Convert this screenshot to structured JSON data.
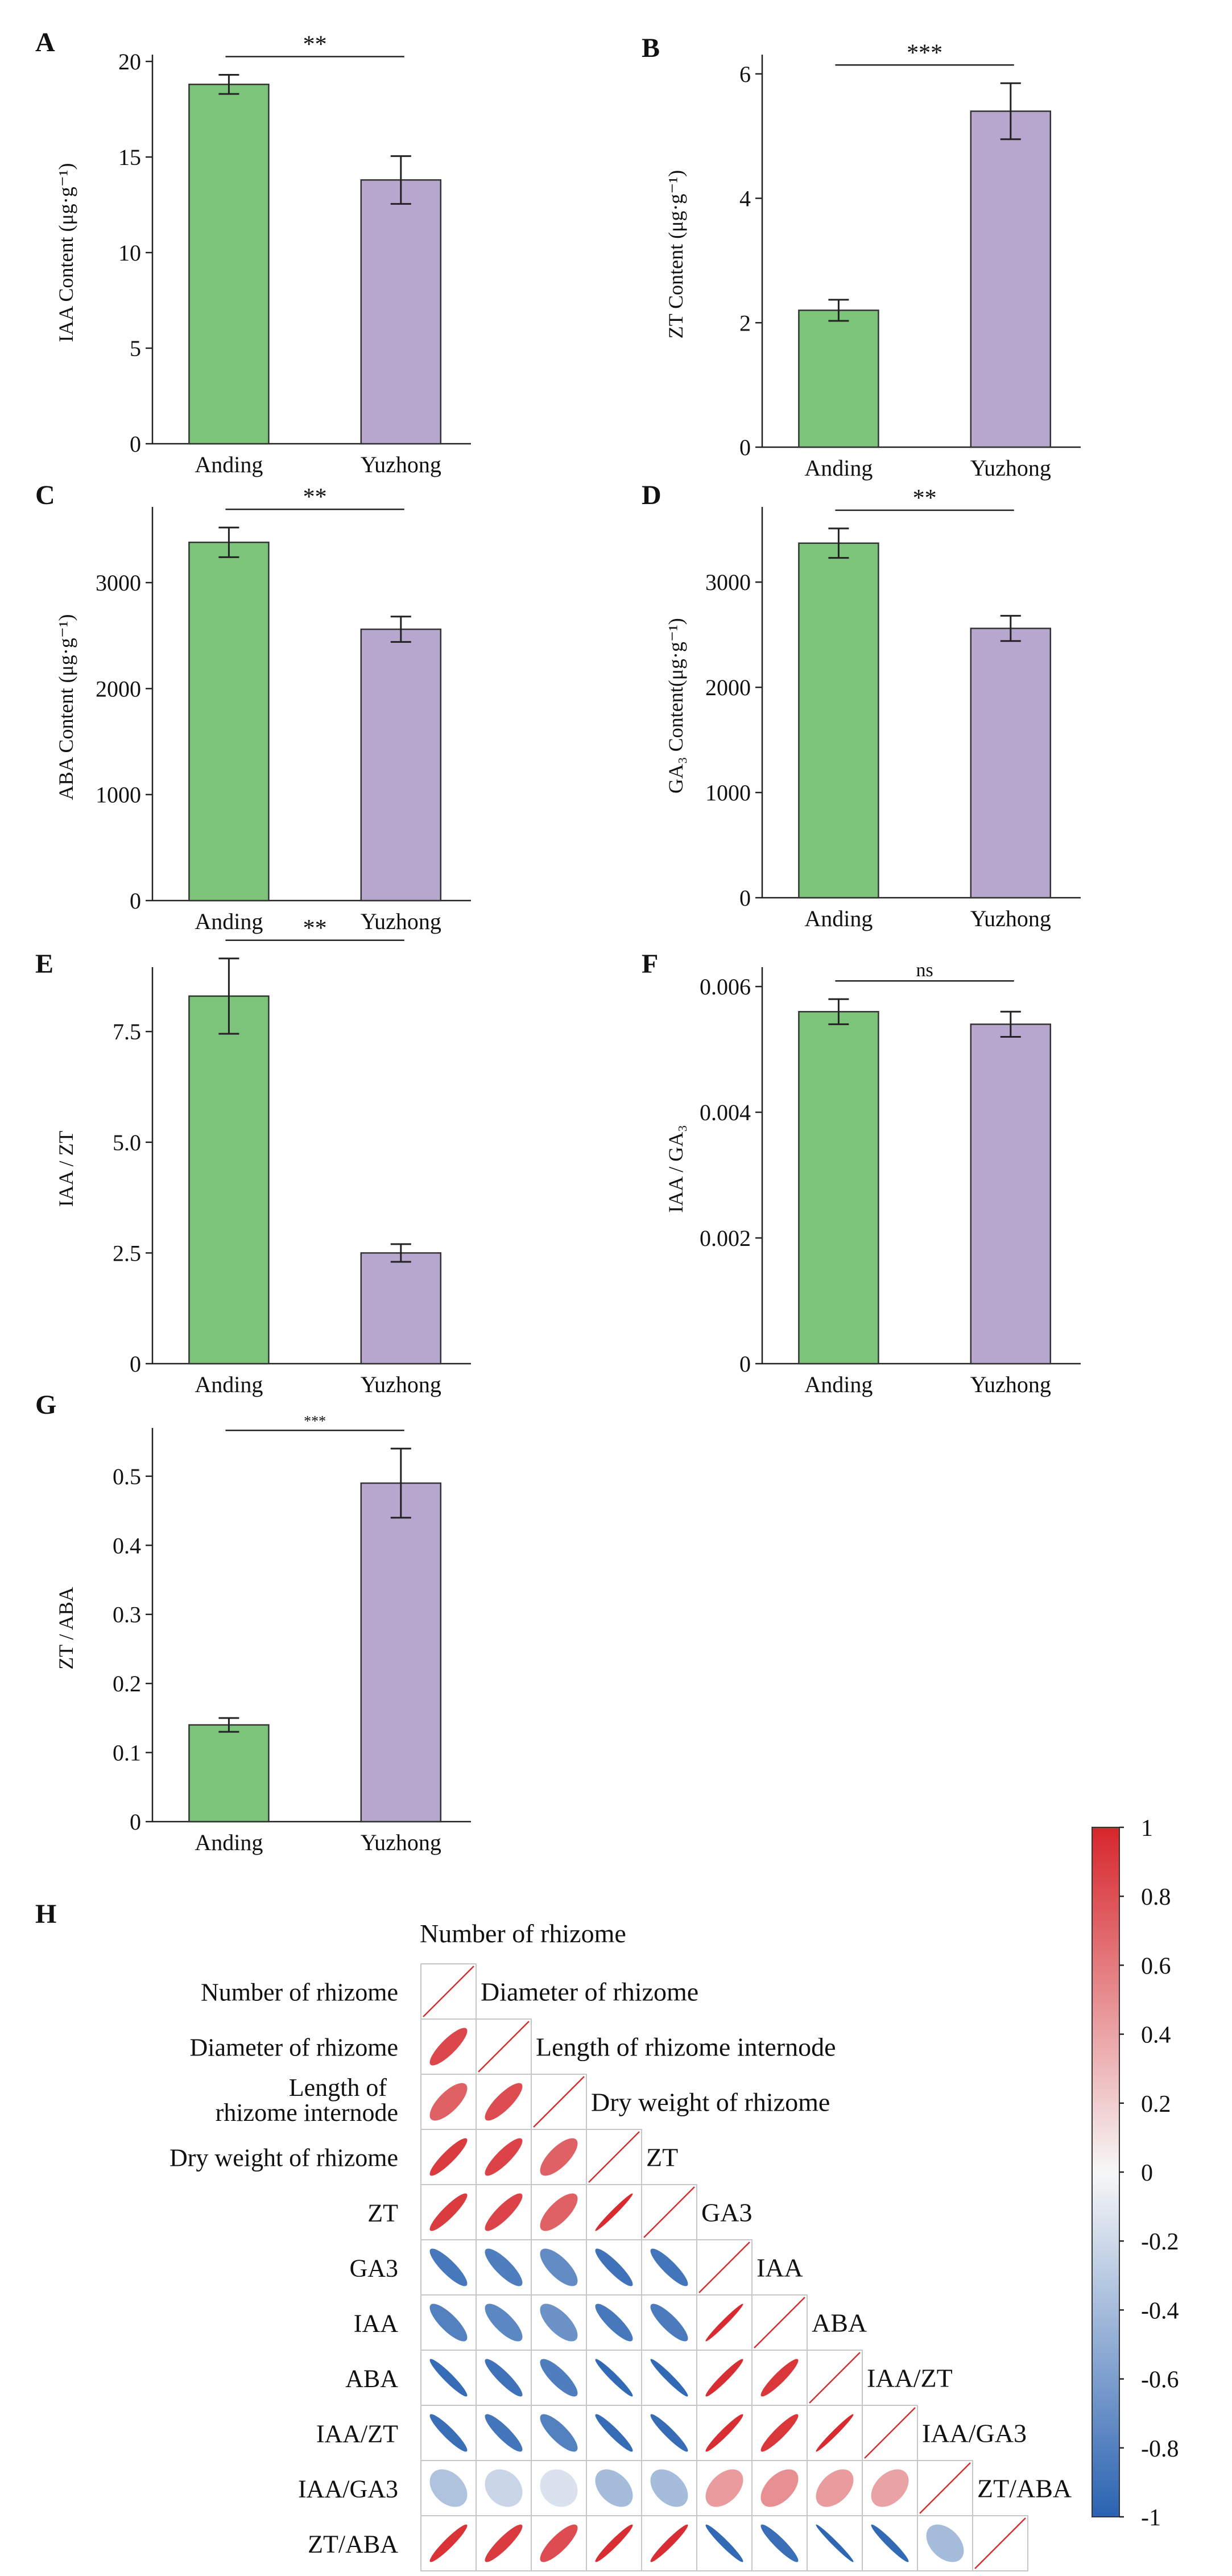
{
  "colors": {
    "anding": "#7dc47b",
    "yuzhong": "#b7a7cf",
    "positive": "#d7262b",
    "negative": "#2a63b2",
    "neutral": "#f7f7f7"
  },
  "chart_data": [
    {
      "panel": "A",
      "type": "bar",
      "categories": [
        "Anding",
        "Yuzhong"
      ],
      "values": [
        18.8,
        13.8
      ],
      "errors": [
        0.5,
        1.25
      ],
      "ylabel": "IAA Content (μg·g⁻¹)",
      "ylim": [
        0,
        20
      ],
      "yticks": [
        0,
        5,
        10,
        15,
        20
      ],
      "tick_labels": [
        "0",
        "5",
        "10",
        "15",
        "20"
      ],
      "significance": "**"
    },
    {
      "panel": "B",
      "type": "bar",
      "categories": [
        "Anding",
        "Yuzhong"
      ],
      "values": [
        2.2,
        5.4
      ],
      "errors": [
        0.17,
        0.45
      ],
      "ylabel": "ZT Content (μg·g⁻¹)",
      "ylim": [
        0,
        6.2
      ],
      "yticks": [
        0,
        2,
        4,
        6
      ],
      "tick_labels": [
        "0",
        "2",
        "4",
        "6"
      ],
      "significance": "***"
    },
    {
      "panel": "C",
      "type": "bar",
      "categories": [
        "Anding",
        "Yuzhong"
      ],
      "values": [
        3380,
        2560
      ],
      "errors": [
        140,
        120
      ],
      "ylabel": "ABA Content (μg·g⁻¹)",
      "ylim": [
        0,
        3650
      ],
      "yticks": [
        0,
        1000,
        2000,
        3000
      ],
      "tick_labels": [
        "0",
        "1000",
        "2000",
        "3000"
      ],
      "significance": "**"
    },
    {
      "panel": "D",
      "type": "bar",
      "categories": [
        "Anding",
        "Yuzhong"
      ],
      "values": [
        3370,
        2560
      ],
      "errors": [
        140,
        120
      ],
      "ylabel": "GA₃ Content(μg·g⁻¹)",
      "ylim": [
        0,
        3650
      ],
      "yticks": [
        0,
        1000,
        2000,
        3000
      ],
      "tick_labels": [
        "0",
        "1000",
        "2000",
        "3000"
      ],
      "significance": "**"
    },
    {
      "panel": "E",
      "type": "bar",
      "categories": [
        "Anding",
        "Yuzhong"
      ],
      "values": [
        8.3,
        2.5
      ],
      "errors": [
        0.85,
        0.2
      ],
      "ylabel": "IAA / ZT",
      "ylim": [
        0,
        8.8
      ],
      "yticks": [
        0,
        2.5,
        5.0,
        7.5
      ],
      "tick_labels": [
        "0",
        "2.5",
        "5.0",
        "7.5"
      ],
      "significance": "**"
    },
    {
      "panel": "F",
      "type": "bar",
      "categories": [
        "Anding",
        "Yuzhong"
      ],
      "values": [
        0.0056,
        0.0054
      ],
      "errors": [
        0.0002,
        0.0002
      ],
      "ylabel": "IAA / GA₃",
      "ylim": [
        0,
        0.0062
      ],
      "yticks": [
        0,
        0.002,
        0.004,
        0.006
      ],
      "tick_labels": [
        "0",
        "0.002",
        "0.004",
        "0.006"
      ],
      "significance": "ns"
    },
    {
      "panel": "G",
      "type": "bar",
      "categories": [
        "Anding",
        "Yuzhong"
      ],
      "values": [
        0.14,
        0.49
      ],
      "errors": [
        0.01,
        0.05
      ],
      "ylabel": "ZT / ABA",
      "ylim": [
        0,
        0.56
      ],
      "yticks": [
        0,
        0.1,
        0.2,
        0.3,
        0.4,
        0.5
      ],
      "tick_labels": [
        "0",
        "0.1",
        "0.2",
        "0.3",
        "0.4",
        "0.5"
      ],
      "significance": "***"
    },
    {
      "panel": "H",
      "type": "heatmap",
      "variables": [
        "Number of rhizome",
        "Diameter of rhizome",
        "Length of rhizome internode",
        "Dry weight of rhizome",
        "ZT",
        "GA3",
        "IAA",
        "ABA",
        "IAA/ZT",
        "IAA/GA3",
        "ZT/ABA"
      ],
      "row_labels": [
        "Number of rhizome",
        "Diameter of rhizome",
        "Length of\nrhizome internode",
        "Dry weight of rhizome",
        "ZT",
        "GA3",
        "IAA",
        "ABA",
        "IAA/ZT",
        "IAA/GA3",
        "ZT/ABA"
      ],
      "colorbar_ticks": [
        1,
        0.8,
        0.6,
        0.4,
        0.2,
        0,
        -0.2,
        -0.4,
        -0.6,
        -0.8,
        -1
      ],
      "colorbar_labels": [
        "1",
        "0.8",
        "0.6",
        "0.4",
        "0.2",
        "0",
        "-0.2",
        "-0.4",
        "-0.6",
        "-0.8",
        "-1"
      ],
      "matrix": [
        [
          1
        ],
        [
          0.84,
          1
        ],
        [
          0.72,
          0.82,
          1
        ],
        [
          0.9,
          0.86,
          0.72,
          1
        ],
        [
          0.9,
          0.86,
          0.72,
          0.98,
          1
        ],
        [
          -0.86,
          -0.82,
          -0.72,
          -0.9,
          -0.88,
          1
        ],
        [
          -0.8,
          -0.76,
          -0.68,
          -0.86,
          -0.84,
          0.98,
          1
        ],
        [
          -0.94,
          -0.9,
          -0.82,
          -0.96,
          -0.96,
          0.96,
          0.92,
          1
        ],
        [
          -0.92,
          -0.88,
          -0.8,
          -0.94,
          -0.94,
          0.96,
          0.92,
          0.98,
          1
        ],
        [
          -0.35,
          -0.22,
          -0.14,
          -0.4,
          -0.4,
          0.44,
          0.5,
          0.44,
          0.4,
          1
        ],
        [
          0.94,
          0.9,
          0.82,
          0.96,
          0.96,
          -0.96,
          -0.92,
          -0.98,
          -0.96,
          -0.4,
          1
        ]
      ]
    }
  ]
}
